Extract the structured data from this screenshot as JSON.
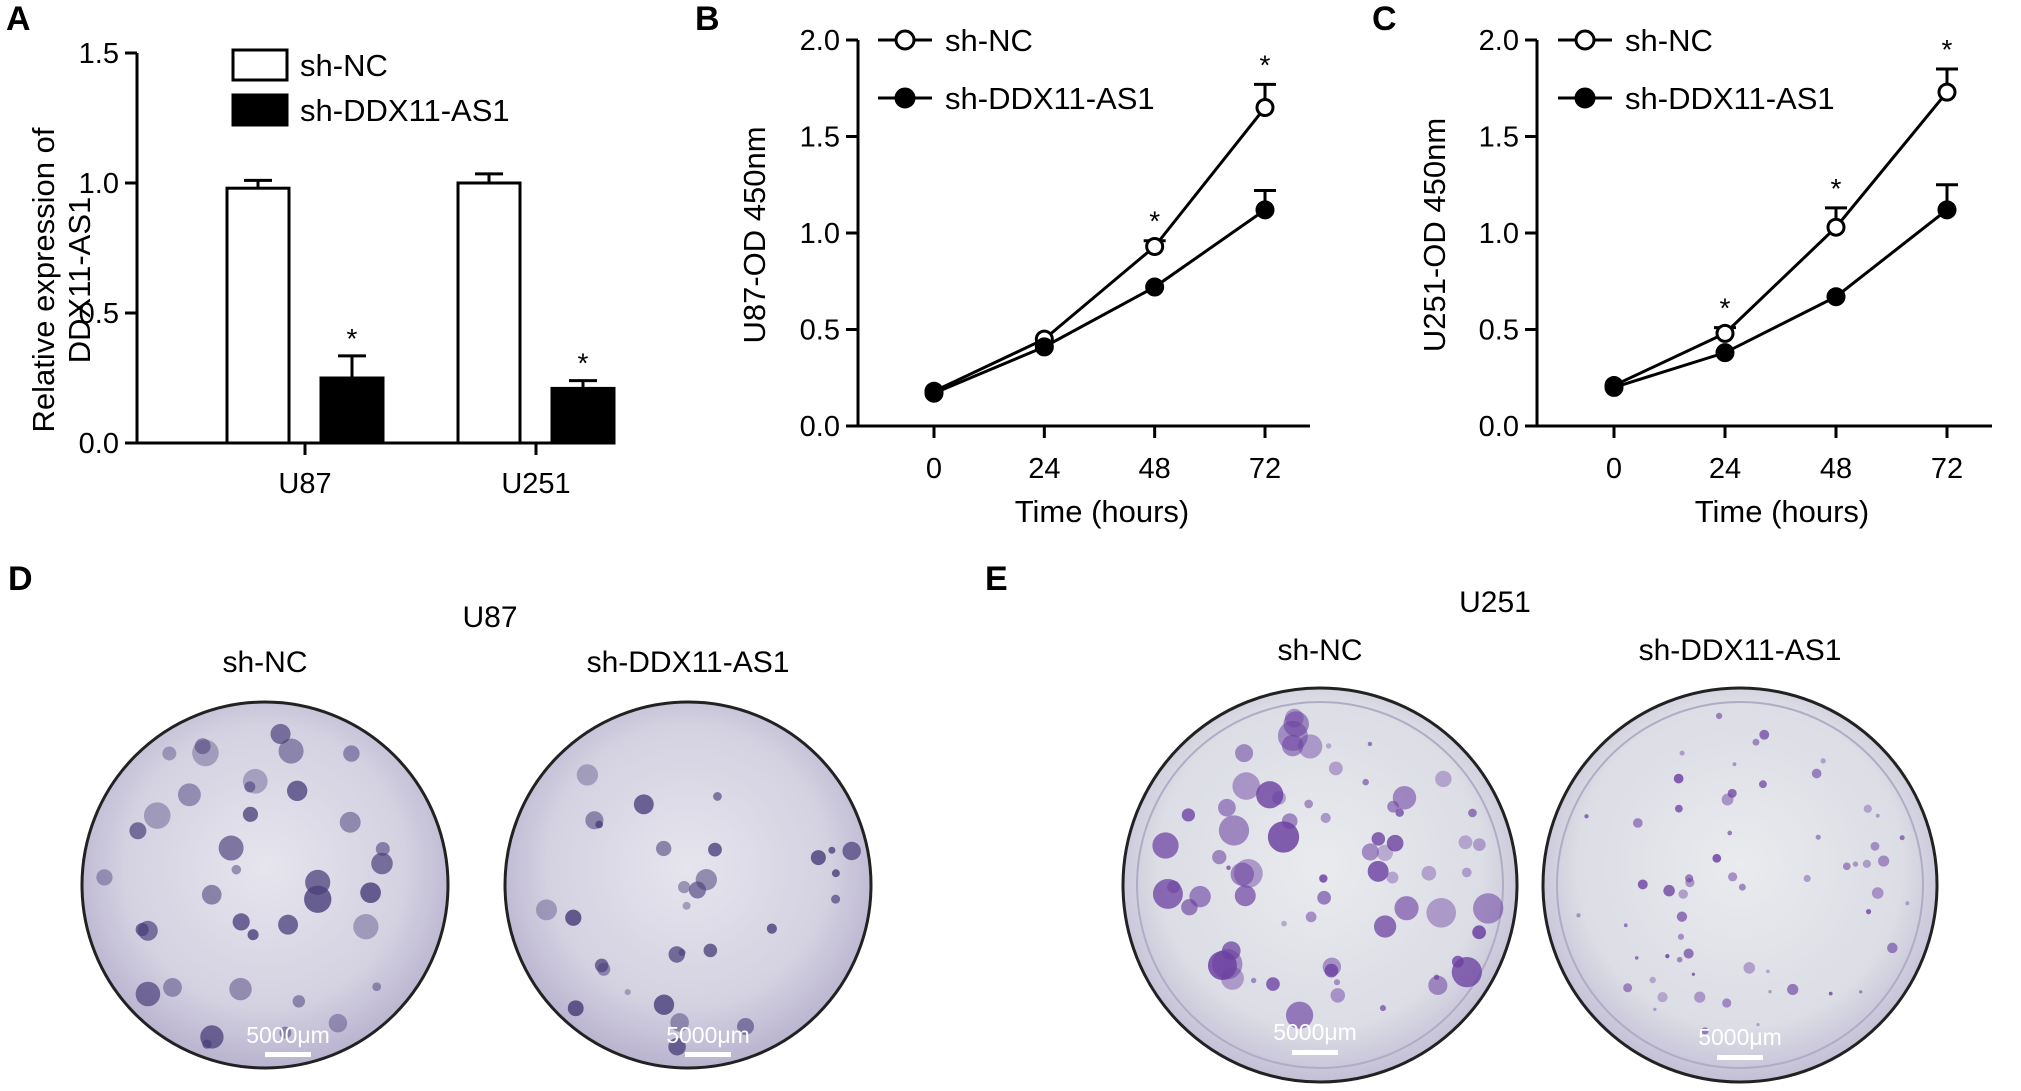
{
  "panels": {
    "A": "A",
    "B": "B",
    "C": "C",
    "D": "D",
    "E": "E"
  },
  "legend": {
    "nc": "sh-NC",
    "kd": "sh-DDX11-AS1"
  },
  "chart_data": [
    {
      "id": "A",
      "type": "bar",
      "ylabel_line1": "Relative expression of",
      "ylabel_line2": "DDX11-AS1",
      "ylim": [
        0,
        1.5
      ],
      "yticks": [
        "0.0",
        "0.5",
        "1.0",
        "1.5"
      ],
      "categories": [
        "U87",
        "U251"
      ],
      "series": [
        {
          "name": "sh-NC",
          "values": [
            0.98,
            1.0
          ],
          "errors": [
            0.03,
            0.035
          ],
          "fill": "#ffffff"
        },
        {
          "name": "sh-DDX11-AS1",
          "values": [
            0.25,
            0.21
          ],
          "errors": [
            0.085,
            0.03
          ],
          "fill": "#000000"
        }
      ],
      "significance": [
        "*",
        "*"
      ]
    },
    {
      "id": "B",
      "type": "line",
      "xlabel": "Time (hours)",
      "ylabel": "U87-OD 450nm",
      "x": [
        0,
        24,
        48,
        72
      ],
      "xticks": [
        "0",
        "24",
        "48",
        "72"
      ],
      "ylim": [
        0,
        2.0
      ],
      "yticks": [
        "0.0",
        "0.5",
        "1.0",
        "1.5",
        "2.0"
      ],
      "series": [
        {
          "name": "sh-NC",
          "values": [
            0.18,
            0.45,
            0.93,
            1.65
          ],
          "errors": [
            0.02,
            0.02,
            0.03,
            0.12
          ],
          "marker": "open"
        },
        {
          "name": "sh-DDX11-AS1",
          "values": [
            0.17,
            0.41,
            0.72,
            1.12
          ],
          "errors": [
            0.02,
            0.02,
            0.02,
            0.1
          ],
          "marker": "filled"
        }
      ],
      "significance": [
        "",
        "",
        "*",
        "*"
      ]
    },
    {
      "id": "C",
      "type": "line",
      "xlabel": "Time (hours)",
      "ylabel": "U251-OD 450nm",
      "x": [
        0,
        24,
        48,
        72
      ],
      "xticks": [
        "0",
        "24",
        "48",
        "72"
      ],
      "ylim": [
        0,
        2.0
      ],
      "yticks": [
        "0.0",
        "0.5",
        "1.0",
        "1.5",
        "2.0"
      ],
      "series": [
        {
          "name": "sh-NC",
          "values": [
            0.21,
            0.48,
            1.03,
            1.73
          ],
          "errors": [
            0.02,
            0.03,
            0.1,
            0.12
          ],
          "marker": "open"
        },
        {
          "name": "sh-DDX11-AS1",
          "values": [
            0.2,
            0.38,
            0.67,
            1.12
          ],
          "errors": [
            0.02,
            0.02,
            0.02,
            0.13
          ],
          "marker": "filled"
        }
      ],
      "significance": [
        "",
        "*",
        "*",
        "*"
      ]
    }
  ],
  "colony_panels": [
    {
      "id": "D",
      "cell_line": "U87",
      "left_label": "sh-NC",
      "right_label": "sh-DDX11-AS1",
      "scale_bar": "5000μm",
      "dish_color": "#d6d3e2",
      "colony_color": "#4a3f7a"
    },
    {
      "id": "E",
      "cell_line": "U251",
      "left_label": "sh-NC",
      "right_label": "sh-DDX11-AS1",
      "scale_bar": "5000μm",
      "dish_color": "#dcdde6",
      "colony_color": "#6a3fa0"
    }
  ]
}
